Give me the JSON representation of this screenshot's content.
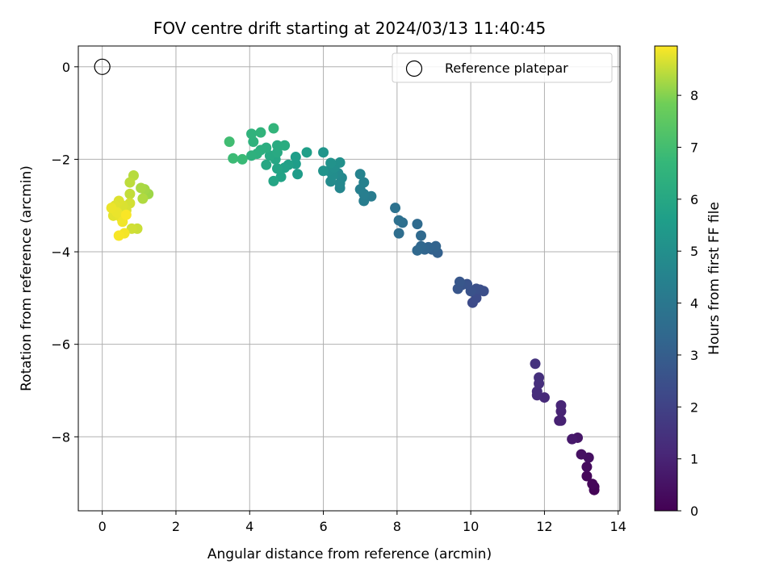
{
  "chart_data": {
    "type": "scatter",
    "title": "FOV centre drift starting at 2024/03/13 11:40:45",
    "xlabel": "Angular distance from reference (arcmin)",
    "ylabel": "Rotation from reference (arcmin)",
    "xlim": [
      -0.65,
      14.05
    ],
    "ylim": [
      -9.6,
      0.45
    ],
    "xticks": [
      0,
      2,
      4,
      6,
      8,
      10,
      12,
      14
    ],
    "yticks": [
      0,
      -2,
      -4,
      -6,
      -8
    ],
    "grid": true,
    "legend": {
      "position": "top-right",
      "entries": [
        "Reference platepar"
      ]
    },
    "reference_point": {
      "x": 0,
      "y": 0
    },
    "colorbar": {
      "label": "Hours from first FF file",
      "colormap": "viridis",
      "range": [
        0,
        8.95
      ],
      "ticks": [
        0,
        1,
        2,
        3,
        4,
        5,
        6,
        7,
        8
      ]
    },
    "points": [
      {
        "x": 13.35,
        "y": -9.15,
        "t": 0.05
      },
      {
        "x": 13.35,
        "y": -9.08,
        "t": 0.1
      },
      {
        "x": 13.3,
        "y": -9.02,
        "t": 0.15
      },
      {
        "x": 13.15,
        "y": -8.85,
        "t": 0.2
      },
      {
        "x": 13.15,
        "y": -8.65,
        "t": 0.3
      },
      {
        "x": 13.2,
        "y": -8.45,
        "t": 0.4
      },
      {
        "x": 13.0,
        "y": -8.38,
        "t": 0.45
      },
      {
        "x": 12.9,
        "y": -8.02,
        "t": 0.6
      },
      {
        "x": 12.75,
        "y": -8.05,
        "t": 0.7
      },
      {
        "x": 12.4,
        "y": -7.65,
        "t": 0.9
      },
      {
        "x": 12.45,
        "y": -7.65,
        "t": 0.95
      },
      {
        "x": 12.45,
        "y": -7.45,
        "t": 1.0
      },
      {
        "x": 12.45,
        "y": -7.32,
        "t": 1.05
      },
      {
        "x": 12.0,
        "y": -7.15,
        "t": 1.2
      },
      {
        "x": 11.8,
        "y": -7.1,
        "t": 1.25
      },
      {
        "x": 11.8,
        "y": -7.02,
        "t": 1.3
      },
      {
        "x": 11.85,
        "y": -6.85,
        "t": 1.35
      },
      {
        "x": 11.85,
        "y": -6.72,
        "t": 1.4
      },
      {
        "x": 11.75,
        "y": -6.42,
        "t": 1.5
      },
      {
        "x": 10.05,
        "y": -5.1,
        "t": 2.3
      },
      {
        "x": 10.15,
        "y": -5.0,
        "t": 2.35
      },
      {
        "x": 10.25,
        "y": -4.82,
        "t": 2.4
      },
      {
        "x": 10.35,
        "y": -4.85,
        "t": 2.45
      },
      {
        "x": 10.15,
        "y": -4.8,
        "t": 2.5
      },
      {
        "x": 10.0,
        "y": -4.85,
        "t": 2.55
      },
      {
        "x": 9.9,
        "y": -4.7,
        "t": 2.6
      },
      {
        "x": 9.75,
        "y": -4.72,
        "t": 2.65
      },
      {
        "x": 9.65,
        "y": -4.8,
        "t": 2.7
      },
      {
        "x": 9.7,
        "y": -4.65,
        "t": 2.75
      },
      {
        "x": 9.1,
        "y": -4.02,
        "t": 3.1
      },
      {
        "x": 8.95,
        "y": -3.95,
        "t": 3.15
      },
      {
        "x": 9.05,
        "y": -3.88,
        "t": 3.2
      },
      {
        "x": 8.85,
        "y": -3.9,
        "t": 3.25
      },
      {
        "x": 8.75,
        "y": -3.95,
        "t": 3.3
      },
      {
        "x": 8.65,
        "y": -3.88,
        "t": 3.35
      },
      {
        "x": 8.55,
        "y": -3.97,
        "t": 3.4
      },
      {
        "x": 8.65,
        "y": -3.65,
        "t": 3.45
      },
      {
        "x": 8.55,
        "y": -3.4,
        "t": 3.5
      },
      {
        "x": 8.05,
        "y": -3.6,
        "t": 3.6
      },
      {
        "x": 8.15,
        "y": -3.37,
        "t": 3.65
      },
      {
        "x": 8.05,
        "y": -3.32,
        "t": 3.7
      },
      {
        "x": 7.95,
        "y": -3.05,
        "t": 3.8
      },
      {
        "x": 7.3,
        "y": -2.8,
        "t": 4.2
      },
      {
        "x": 7.1,
        "y": -2.9,
        "t": 4.25
      },
      {
        "x": 7.1,
        "y": -2.75,
        "t": 4.3
      },
      {
        "x": 7.0,
        "y": -2.65,
        "t": 4.35
      },
      {
        "x": 7.1,
        "y": -2.5,
        "t": 4.45
      },
      {
        "x": 7.0,
        "y": -2.32,
        "t": 4.5
      },
      {
        "x": 6.45,
        "y": -2.62,
        "t": 4.65
      },
      {
        "x": 6.45,
        "y": -2.52,
        "t": 4.7
      },
      {
        "x": 6.5,
        "y": -2.4,
        "t": 4.75
      },
      {
        "x": 6.4,
        "y": -2.3,
        "t": 4.8
      },
      {
        "x": 6.2,
        "y": -2.48,
        "t": 4.85
      },
      {
        "x": 6.25,
        "y": -2.35,
        "t": 4.9
      },
      {
        "x": 6.15,
        "y": -2.25,
        "t": 4.95
      },
      {
        "x": 6.3,
        "y": -2.18,
        "t": 5.0
      },
      {
        "x": 6.45,
        "y": -2.07,
        "t": 5.05
      },
      {
        "x": 6.2,
        "y": -2.08,
        "t": 5.1
      },
      {
        "x": 6.0,
        "y": -2.25,
        "t": 5.15
      },
      {
        "x": 6.0,
        "y": -1.85,
        "t": 5.25
      },
      {
        "x": 5.3,
        "y": -2.32,
        "t": 5.5
      },
      {
        "x": 5.25,
        "y": -2.1,
        "t": 5.55
      },
      {
        "x": 5.25,
        "y": -1.95,
        "t": 5.6
      },
      {
        "x": 5.55,
        "y": -1.85,
        "t": 5.65
      },
      {
        "x": 5.05,
        "y": -2.12,
        "t": 5.7
      },
      {
        "x": 4.95,
        "y": -2.18,
        "t": 5.75
      },
      {
        "x": 4.85,
        "y": -2.38,
        "t": 5.8
      },
      {
        "x": 4.75,
        "y": -2.2,
        "t": 5.85
      },
      {
        "x": 4.65,
        "y": -2.47,
        "t": 5.9
      },
      {
        "x": 4.7,
        "y": -2.0,
        "t": 5.95
      },
      {
        "x": 4.45,
        "y": -2.12,
        "t": 6.0
      },
      {
        "x": 4.55,
        "y": -1.92,
        "t": 6.05
      },
      {
        "x": 4.75,
        "y": -1.85,
        "t": 6.1
      },
      {
        "x": 4.75,
        "y": -1.7,
        "t": 6.15
      },
      {
        "x": 4.95,
        "y": -1.7,
        "t": 6.2
      },
      {
        "x": 4.45,
        "y": -1.75,
        "t": 6.25
      },
      {
        "x": 4.3,
        "y": -1.8,
        "t": 6.3
      },
      {
        "x": 4.2,
        "y": -1.88,
        "t": 6.35
      },
      {
        "x": 4.05,
        "y": -1.92,
        "t": 6.4
      },
      {
        "x": 4.1,
        "y": -1.62,
        "t": 6.45
      },
      {
        "x": 4.05,
        "y": -1.45,
        "t": 6.5
      },
      {
        "x": 4.3,
        "y": -1.42,
        "t": 6.55
      },
      {
        "x": 4.65,
        "y": -1.33,
        "t": 6.6
      },
      {
        "x": 3.8,
        "y": -2.0,
        "t": 6.8
      },
      {
        "x": 3.55,
        "y": -1.98,
        "t": 6.85
      },
      {
        "x": 3.45,
        "y": -1.62,
        "t": 6.95
      },
      {
        "x": 1.25,
        "y": -2.75,
        "t": 8.2
      },
      {
        "x": 1.15,
        "y": -2.65,
        "t": 8.25
      },
      {
        "x": 1.05,
        "y": -2.62,
        "t": 8.3
      },
      {
        "x": 1.1,
        "y": -2.85,
        "t": 8.35
      },
      {
        "x": 0.85,
        "y": -2.35,
        "t": 8.4
      },
      {
        "x": 0.75,
        "y": -2.5,
        "t": 8.45
      },
      {
        "x": 0.75,
        "y": -2.75,
        "t": 8.5
      },
      {
        "x": 0.95,
        "y": -3.5,
        "t": 8.55
      },
      {
        "x": 0.8,
        "y": -3.5,
        "t": 8.6
      },
      {
        "x": 0.75,
        "y": -2.95,
        "t": 8.62
      },
      {
        "x": 0.65,
        "y": -3.1,
        "t": 8.65
      },
      {
        "x": 0.55,
        "y": -3.0,
        "t": 8.68
      },
      {
        "x": 0.45,
        "y": -2.9,
        "t": 8.7
      },
      {
        "x": 0.35,
        "y": -3.0,
        "t": 8.72
      },
      {
        "x": 0.3,
        "y": -3.22,
        "t": 8.75
      },
      {
        "x": 0.5,
        "y": -3.25,
        "t": 8.78
      },
      {
        "x": 0.4,
        "y": -3.15,
        "t": 8.8
      },
      {
        "x": 0.25,
        "y": -3.05,
        "t": 8.82
      },
      {
        "x": 0.55,
        "y": -3.35,
        "t": 8.85
      },
      {
        "x": 0.6,
        "y": -3.6,
        "t": 8.88
      },
      {
        "x": 0.45,
        "y": -3.65,
        "t": 8.9
      },
      {
        "x": 0.65,
        "y": -3.2,
        "t": 8.92
      }
    ]
  }
}
